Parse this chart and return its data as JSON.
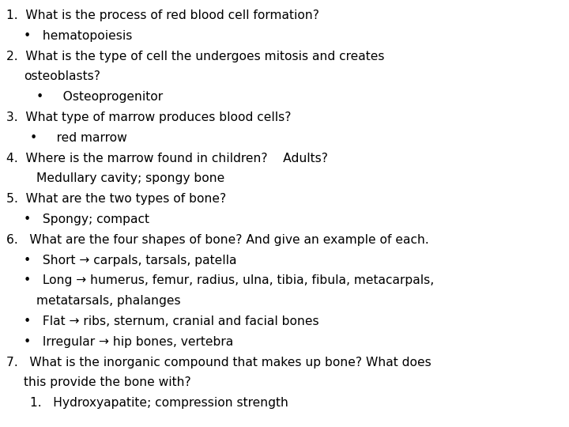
{
  "background_color": "#ffffff",
  "text_color": "#000000",
  "font_family": "DejaVu Sans",
  "font_size": 11.2,
  "lines": [
    {
      "x": 8,
      "text": "1.  What is the process of red blood cell formation?"
    },
    {
      "x": 30,
      "text": "•   hematopoiesis"
    },
    {
      "x": 8,
      "text": "2.  What is the type of cell the undergoes mitosis and creates"
    },
    {
      "x": 30,
      "text": "osteoblasts?"
    },
    {
      "x": 46,
      "text": "•     Osteoprogenitor"
    },
    {
      "x": 8,
      "text": "3.  What type of marrow produces blood cells?"
    },
    {
      "x": 38,
      "text": "•     red marrow"
    },
    {
      "x": 8,
      "text": "4.  Where is the marrow found in children?    Adults?"
    },
    {
      "x": 46,
      "text": "Medullary cavity; spongy bone"
    },
    {
      "x": 8,
      "text": "5.  What are the two types of bone?"
    },
    {
      "x": 30,
      "text": "•   Spongy; compact"
    },
    {
      "x": 8,
      "text": "6.   What are the four shapes of bone? And give an example of each."
    },
    {
      "x": 30,
      "text": "•   Short → carpals, tarsals, patella"
    },
    {
      "x": 30,
      "text": "•   Long → humerus, femur, radius, ulna, tibia, fibula, metacarpals,"
    },
    {
      "x": 46,
      "text": "metatarsals, phalanges"
    },
    {
      "x": 30,
      "text": "•   Flat → ribs, sternum, cranial and facial bones"
    },
    {
      "x": 30,
      "text": "•   Irregular → hip bones, vertebra"
    },
    {
      "x": 8,
      "text": "7.   What is the inorganic compound that makes up bone? What does"
    },
    {
      "x": 30,
      "text": "this provide the bone with?"
    },
    {
      "x": 38,
      "text": "1.   Hydroxyapatite; compression strength"
    }
  ]
}
